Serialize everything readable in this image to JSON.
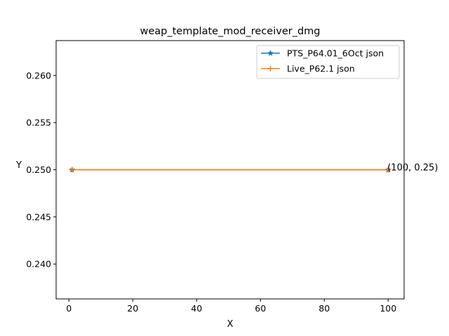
{
  "chart_data": {
    "type": "line",
    "title": "weap_template_mod_receiver_dmg",
    "xlabel": "X",
    "ylabel": "Y",
    "xlim": [
      -4,
      105
    ],
    "ylim": [
      0.2363,
      0.2637
    ],
    "xticks": [
      0,
      20,
      40,
      60,
      80,
      100
    ],
    "yticks": [
      0.24,
      0.245,
      0.25,
      0.255,
      0.26
    ],
    "grid": false,
    "legend_position": "upper right",
    "series": [
      {
        "name": "PTS_P64.01_6Oct json",
        "color": "#1f77b4",
        "marker": "star",
        "x": [
          1,
          100
        ],
        "y": [
          0.25,
          0.25
        ]
      },
      {
        "name": "Live_P62.1 json",
        "color": "#ff7f0e",
        "marker": "plus",
        "x": [
          1,
          100
        ],
        "y": [
          0.25,
          0.25
        ]
      }
    ],
    "annotations": [
      {
        "text": "(100, 0.25)",
        "x": 100,
        "y": 0.25
      }
    ]
  }
}
